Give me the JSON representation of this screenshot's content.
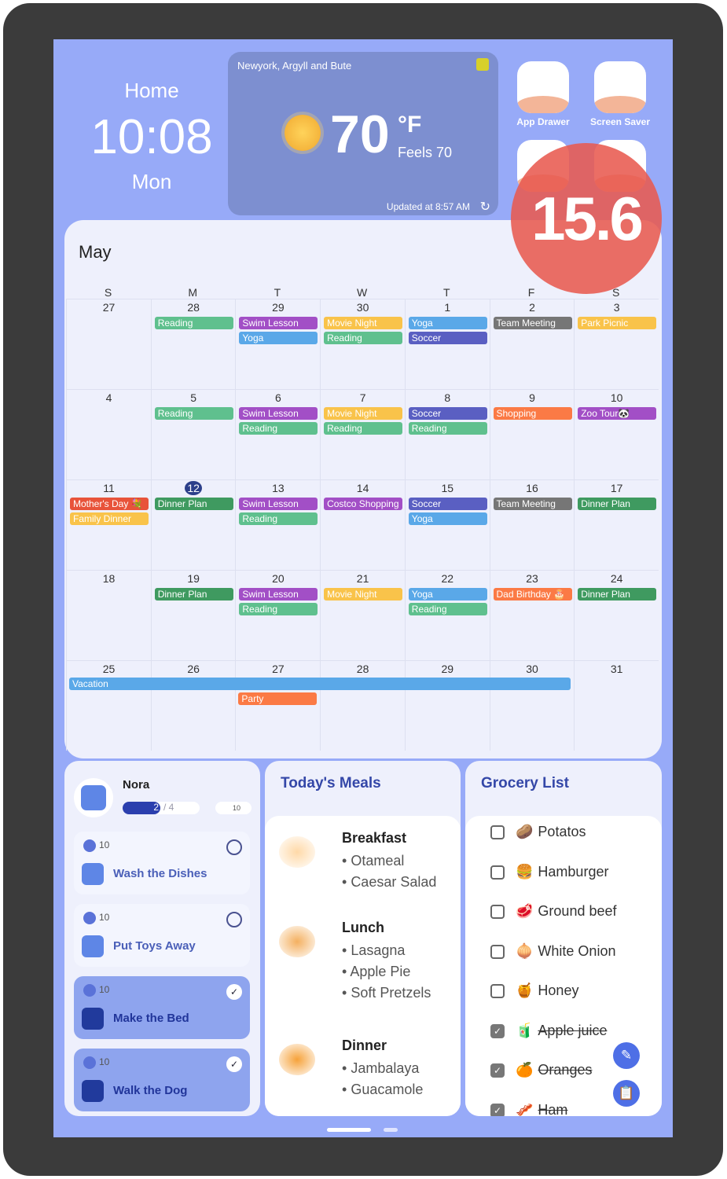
{
  "clock": {
    "label": "Home",
    "time": "10:08",
    "day": "Mon"
  },
  "weather": {
    "location": "Newyork, Argyll and Bute",
    "temp": "70",
    "unit": "°F",
    "feels": "Feels 70",
    "updated": "Updated at 8:57 AM",
    "icon": "sun-icon"
  },
  "shortcuts": [
    {
      "label": "App Drawer",
      "icon": "grid-icon"
    },
    {
      "label": "Screen Saver",
      "icon": "hourglass-icon"
    }
  ],
  "overlay": {
    "value": "15.6"
  },
  "calendar": {
    "month": "May",
    "weekdays": [
      "S",
      "M",
      "T",
      "W",
      "T",
      "F",
      "S"
    ],
    "colors": {
      "green": "#5fc08e",
      "purple": "#a24fc6",
      "yellow": "#f9c34a",
      "blue": "#5aa8e8",
      "indigo": "#5a5fc2",
      "gray": "#767676",
      "orange": "#fb7a45",
      "red": "#e8533a",
      "dkgreen": "#3f9a60"
    },
    "weeks": [
      [
        {
          "d": "27",
          "e": []
        },
        {
          "d": "28",
          "e": [
            [
              "Reading",
              "green"
            ]
          ]
        },
        {
          "d": "29",
          "e": [
            [
              "Swim Lesson",
              "purple"
            ],
            [
              "Yoga",
              "blue"
            ]
          ]
        },
        {
          "d": "30",
          "e": [
            [
              "Movie Night",
              "yellow"
            ],
            [
              "Reading",
              "green"
            ]
          ]
        },
        {
          "d": "1",
          "e": [
            [
              "Yoga",
              "blue"
            ],
            [
              "Soccer",
              "indigo"
            ]
          ]
        },
        {
          "d": "2",
          "e": [
            [
              "Team Meeting",
              "gray"
            ]
          ]
        },
        {
          "d": "3",
          "e": [
            [
              "Park Picnic",
              "yellow"
            ]
          ]
        }
      ],
      [
        {
          "d": "4",
          "e": []
        },
        {
          "d": "5",
          "e": [
            [
              "Reading",
              "green"
            ]
          ]
        },
        {
          "d": "6",
          "e": [
            [
              "Swim Lesson",
              "purple"
            ],
            [
              "Reading",
              "green"
            ]
          ]
        },
        {
          "d": "7",
          "e": [
            [
              "Movie Night",
              "yellow"
            ],
            [
              "Reading",
              "green"
            ]
          ]
        },
        {
          "d": "8",
          "e": [
            [
              "Soccer",
              "indigo"
            ],
            [
              "Reading",
              "green"
            ]
          ]
        },
        {
          "d": "9",
          "e": [
            [
              "Shopping",
              "orange"
            ]
          ]
        },
        {
          "d": "10",
          "e": [
            [
              "Zoo Tour🐼",
              "purple"
            ]
          ]
        }
      ],
      [
        {
          "d": "11",
          "e": [
            [
              "Mother's Day 💐",
              "red"
            ],
            [
              "Family Dinner",
              "yellow"
            ]
          ]
        },
        {
          "d": "12",
          "today": true,
          "e": [
            [
              "Dinner Plan",
              "dkgreen"
            ]
          ]
        },
        {
          "d": "13",
          "e": [
            [
              "Swim Lesson",
              "purple"
            ],
            [
              "Reading",
              "green"
            ]
          ]
        },
        {
          "d": "14",
          "e": [
            [
              "Costco Shopping",
              "purple"
            ]
          ]
        },
        {
          "d": "15",
          "e": [
            [
              "Soccer",
              "indigo"
            ],
            [
              "Yoga",
              "blue"
            ]
          ]
        },
        {
          "d": "16",
          "e": [
            [
              "Team Meeting",
              "gray"
            ]
          ]
        },
        {
          "d": "17",
          "e": [
            [
              "Dinner Plan",
              "dkgreen"
            ]
          ]
        }
      ],
      [
        {
          "d": "18",
          "e": []
        },
        {
          "d": "19",
          "e": [
            [
              "Dinner Plan",
              "dkgreen"
            ]
          ]
        },
        {
          "d": "20",
          "e": [
            [
              "Swim Lesson",
              "purple"
            ],
            [
              "Reading",
              "green"
            ]
          ]
        },
        {
          "d": "21",
          "e": [
            [
              "Movie Night",
              "yellow"
            ]
          ]
        },
        {
          "d": "22",
          "e": [
            [
              "Yoga",
              "blue"
            ],
            [
              "Reading",
              "green"
            ]
          ]
        },
        {
          "d": "23",
          "e": [
            [
              "Dad Birthday 🎂",
              "orange"
            ]
          ]
        },
        {
          "d": "24",
          "e": [
            [
              "Dinner Plan",
              "dkgreen"
            ]
          ]
        }
      ],
      [
        {
          "d": "25",
          "e": []
        },
        {
          "d": "26",
          "e": []
        },
        {
          "d": "27",
          "e": []
        },
        {
          "d": "28",
          "e": []
        },
        {
          "d": "29",
          "e": []
        },
        {
          "d": "30",
          "e": []
        },
        {
          "d": "31",
          "e": []
        }
      ]
    ],
    "spans": [
      {
        "label": "Vacation",
        "color": "blue",
        "week": 4,
        "from": 0,
        "to": 5,
        "slot": 0
      },
      {
        "label": "Party",
        "color": "orange",
        "week": 4,
        "from": 2,
        "to": 2,
        "slot": 1
      }
    ]
  },
  "chores": {
    "user": "Nora",
    "progress": {
      "done": 2,
      "total": 4,
      "text": "2",
      "total_text": "/ 4"
    },
    "points": "10",
    "items": [
      {
        "name": "Wash the Dishes",
        "points": "10",
        "done": false
      },
      {
        "name": "Put Toys Away",
        "points": "10",
        "done": false
      },
      {
        "name": "Make the Bed",
        "points": "10",
        "done": true
      },
      {
        "name": "Walk the Dog",
        "points": "10",
        "done": true
      }
    ]
  },
  "meals": {
    "title": "Today's Meals",
    "items": [
      {
        "name": "Breakfast",
        "dishes": [
          "Otameal",
          "Caesar Salad"
        ]
      },
      {
        "name": "Lunch",
        "dishes": [
          "Lasagna",
          "Apple Pie",
          "Soft Pretzels"
        ]
      },
      {
        "name": "Dinner",
        "dishes": [
          "Jambalaya",
          "Guacamole"
        ]
      }
    ]
  },
  "grocery": {
    "title": "Grocery List",
    "items": [
      {
        "name": "Potatos",
        "emoji": "🥔",
        "checked": false
      },
      {
        "name": "Hamburger",
        "emoji": "🍔",
        "checked": false
      },
      {
        "name": "Ground beef",
        "emoji": "🥩",
        "checked": false
      },
      {
        "name": "White Onion",
        "emoji": "🧅",
        "checked": false
      },
      {
        "name": "Honey",
        "emoji": "🍯",
        "checked": false
      },
      {
        "name": "Apple juice",
        "emoji": "🧃",
        "checked": true
      },
      {
        "name": "Oranges",
        "emoji": "🍊",
        "checked": true
      },
      {
        "name": "Ham",
        "emoji": "🥓",
        "checked": true
      }
    ]
  }
}
